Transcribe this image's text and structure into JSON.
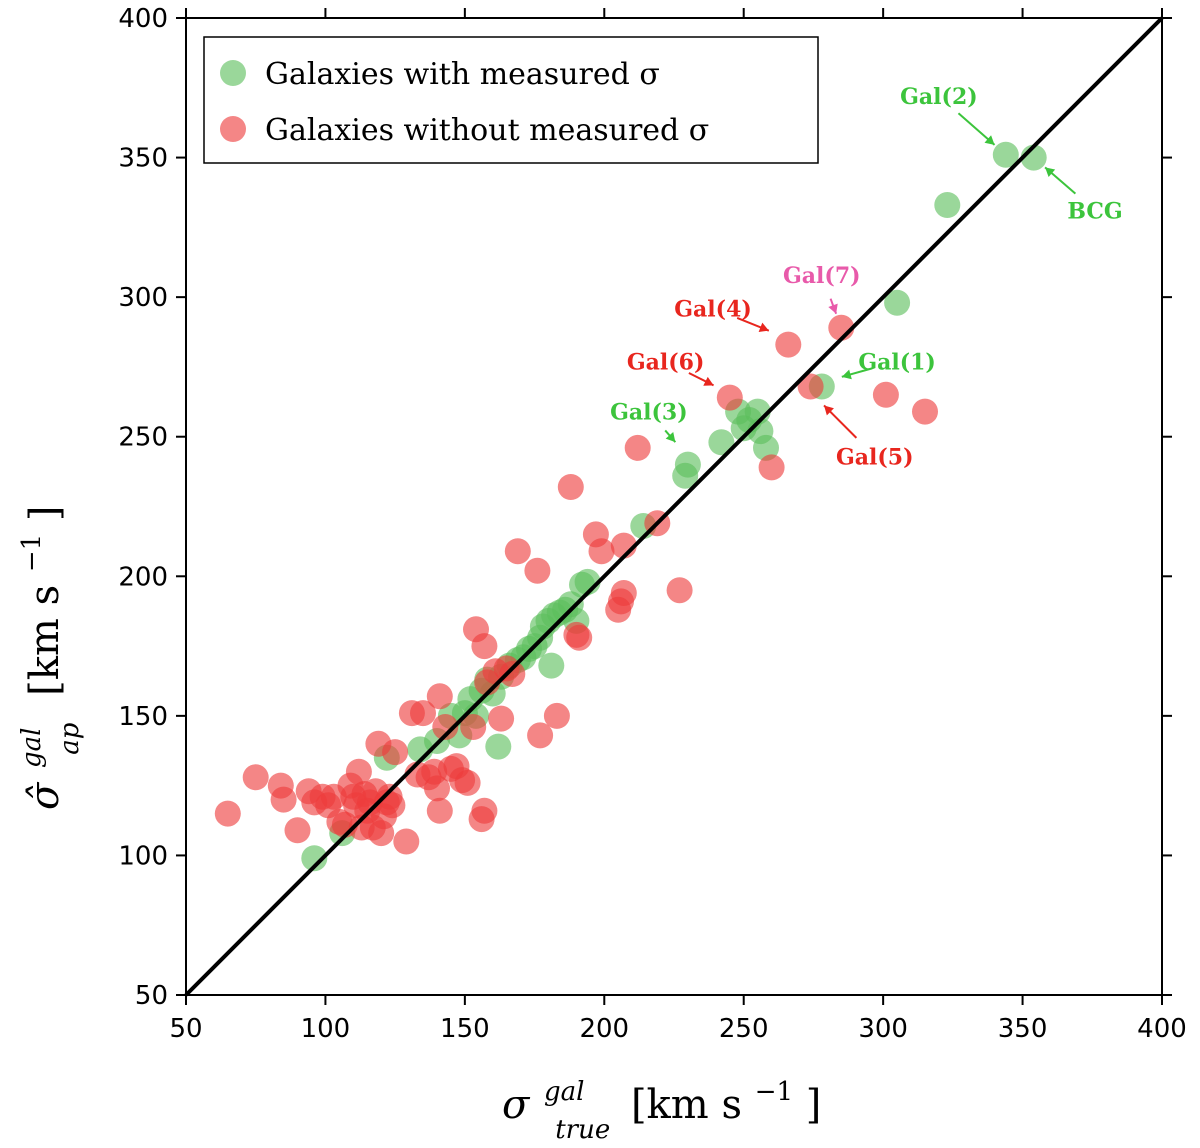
{
  "chart_data": {
    "type": "scatter",
    "title": "",
    "xlabel": {
      "main": "σ",
      "sup": "gal",
      "sub": "true",
      "units": "[km s",
      "units_exp": "−1",
      "units_close": "]"
    },
    "ylabel": {
      "main": "σ̂",
      "sup": "gal",
      "sub": "ap",
      "units": "[km s",
      "units_exp": "−1",
      "units_close": "]"
    },
    "xlim": [
      50,
      400
    ],
    "ylim": [
      50,
      400
    ],
    "xticks": [
      50,
      100,
      150,
      200,
      250,
      300,
      350,
      400
    ],
    "yticks": [
      50,
      100,
      150,
      200,
      250,
      300,
      350,
      400
    ],
    "reference_line": {
      "label": "one-to-one",
      "from": [
        50,
        50
      ],
      "to": [
        400,
        400
      ],
      "color": "#000000"
    },
    "legend": {
      "position": "top-left",
      "entries": [
        {
          "label": "Galaxies with measured σ",
          "color": "#5cbf5c"
        },
        {
          "label": "Galaxies without measured σ",
          "color": "#ee3b3b"
        }
      ]
    },
    "series": [
      {
        "name": "Galaxies with measured σ",
        "color": "#5cbf5c",
        "points": [
          [
            96,
            99
          ],
          [
            106,
            108
          ],
          [
            122,
            135
          ],
          [
            134,
            138
          ],
          [
            140,
            141
          ],
          [
            145,
            150
          ],
          [
            148,
            143
          ],
          [
            150,
            151
          ],
          [
            152,
            156
          ],
          [
            154,
            150
          ],
          [
            156,
            159
          ],
          [
            158,
            163
          ],
          [
            160,
            158
          ],
          [
            162,
            139
          ],
          [
            163,
            164
          ],
          [
            166,
            168
          ],
          [
            169,
            170
          ],
          [
            171,
            171
          ],
          [
            173,
            174
          ],
          [
            175,
            175
          ],
          [
            177,
            178
          ],
          [
            178,
            182
          ],
          [
            180,
            184
          ],
          [
            181,
            168
          ],
          [
            182,
            186
          ],
          [
            184,
            187
          ],
          [
            186,
            188
          ],
          [
            188,
            190
          ],
          [
            190,
            184
          ],
          [
            192,
            197
          ],
          [
            194,
            198
          ],
          [
            214,
            218
          ],
          [
            229,
            236
          ],
          [
            230,
            240
          ],
          [
            242,
            248
          ],
          [
            248,
            259
          ],
          [
            250,
            253
          ],
          [
            252,
            256
          ],
          [
            255,
            259
          ],
          [
            256,
            252
          ],
          [
            258,
            246
          ],
          [
            278,
            268
          ],
          [
            305,
            298
          ],
          [
            323,
            333
          ],
          [
            344,
            351
          ],
          [
            354,
            350
          ]
        ]
      },
      {
        "name": "Galaxies without measured σ",
        "color": "#ee3b3b",
        "points": [
          [
            65,
            115
          ],
          [
            75,
            128
          ],
          [
            84,
            125
          ],
          [
            85,
            120
          ],
          [
            90,
            109
          ],
          [
            94,
            123
          ],
          [
            96,
            119
          ],
          [
            99,
            121
          ],
          [
            101,
            118
          ],
          [
            103,
            121
          ],
          [
            105,
            112
          ],
          [
            107,
            111
          ],
          [
            109,
            125
          ],
          [
            110,
            121
          ],
          [
            111,
            118
          ],
          [
            112,
            130
          ],
          [
            113,
            110
          ],
          [
            114,
            122
          ],
          [
            115,
            116
          ],
          [
            116,
            119
          ],
          [
            117,
            110
          ],
          [
            118,
            123
          ],
          [
            119,
            140
          ],
          [
            120,
            108
          ],
          [
            121,
            114
          ],
          [
            122,
            119
          ],
          [
            123,
            121
          ],
          [
            124,
            118
          ],
          [
            125,
            137
          ],
          [
            129,
            105
          ],
          [
            131,
            151
          ],
          [
            133,
            129
          ],
          [
            135,
            151
          ],
          [
            137,
            128
          ],
          [
            139,
            130
          ],
          [
            140,
            124
          ],
          [
            141,
            157
          ],
          [
            141,
            116
          ],
          [
            143,
            146
          ],
          [
            145,
            131
          ],
          [
            147,
            132
          ],
          [
            149,
            127
          ],
          [
            151,
            126
          ],
          [
            153,
            146
          ],
          [
            154,
            181
          ],
          [
            156,
            113
          ],
          [
            157,
            175
          ],
          [
            157,
            116
          ],
          [
            158,
            162
          ],
          [
            161,
            166
          ],
          [
            163,
            149
          ],
          [
            165,
            167
          ],
          [
            167,
            165
          ],
          [
            169,
            209
          ],
          [
            176,
            202
          ],
          [
            177,
            143
          ],
          [
            183,
            150
          ],
          [
            188,
            232
          ],
          [
            190,
            179
          ],
          [
            191,
            178
          ],
          [
            197,
            215
          ],
          [
            199,
            209
          ],
          [
            205,
            188
          ],
          [
            206,
            191
          ],
          [
            207,
            211
          ],
          [
            207,
            194
          ],
          [
            212,
            246
          ],
          [
            219,
            219
          ],
          [
            227,
            195
          ],
          [
            245,
            264
          ],
          [
            260,
            239
          ],
          [
            266,
            283
          ],
          [
            274,
            268
          ],
          [
            285,
            289
          ],
          [
            301,
            265
          ],
          [
            315,
            259
          ]
        ]
      }
    ],
    "annotations": [
      {
        "text": "Gal(2)",
        "color": "#3cc43c",
        "target": [
          344,
          351
        ],
        "text_at": [
          320,
          372
        ],
        "align": "middle"
      },
      {
        "text": "BCG",
        "color": "#3cc43c",
        "target": [
          354,
          350
        ],
        "text_at": [
          376,
          331
        ],
        "align": "middle"
      },
      {
        "text": "Gal(7)",
        "color": "#e85aaa",
        "target": [
          285,
          289
        ],
        "text_at": [
          278,
          308
        ],
        "align": "middle"
      },
      {
        "text": "Gal(4)",
        "color": "#e8261e",
        "target": [
          264,
          286
        ],
        "text_at": [
          239,
          296
        ],
        "align": "middle"
      },
      {
        "text": "Gal(1)",
        "color": "#3cc43c",
        "target": [
          280,
          270
        ],
        "text_at": [
          305,
          277
        ],
        "align": "middle"
      },
      {
        "text": "Gal(6)",
        "color": "#e8261e",
        "target": [
          244,
          266
        ],
        "text_at": [
          222,
          277
        ],
        "align": "middle"
      },
      {
        "text": "Gal(3)",
        "color": "#3cc43c",
        "target": [
          229,
          244
        ],
        "text_at": [
          216,
          259
        ],
        "align": "middle"
      },
      {
        "text": "Gal(5)",
        "color": "#e8261e",
        "target": [
          275,
          265
        ],
        "text_at": [
          297,
          243
        ],
        "align": "middle"
      }
    ]
  }
}
